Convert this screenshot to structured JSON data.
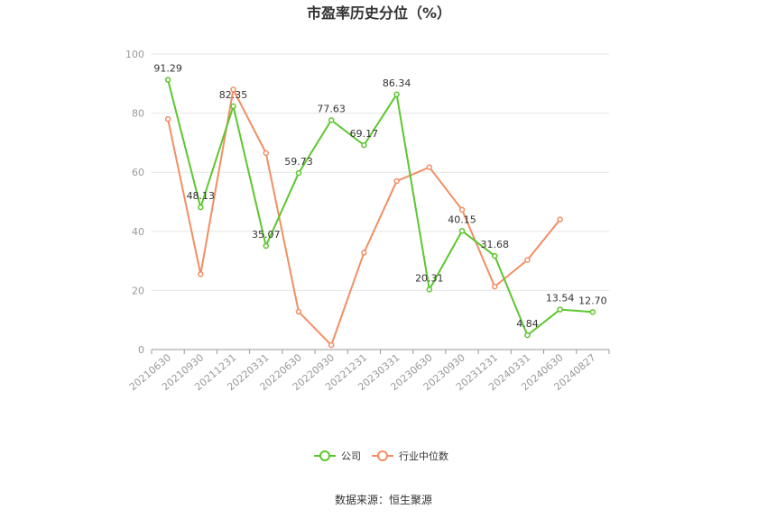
{
  "chart_data": {
    "type": "line",
    "title": "市盈率历史分位（%）",
    "categories": [
      "20210630",
      "20210930",
      "20211231",
      "20220331",
      "20220630",
      "20220930",
      "20221231",
      "20230331",
      "20230630",
      "20230930",
      "20231231",
      "20240331",
      "20240630",
      "20240827"
    ],
    "ylim": [
      0,
      100
    ],
    "yticks": [
      0,
      20,
      40,
      60,
      80,
      100
    ],
    "grid": true,
    "legend_position": "bottom",
    "series": [
      {
        "name": "公司",
        "color": "#5cc72e",
        "values": [
          91.29,
          48.13,
          82.35,
          35.07,
          59.73,
          77.63,
          69.17,
          86.34,
          20.31,
          40.15,
          31.68,
          4.84,
          13.54,
          12.7
        ],
        "labels": [
          "91.29",
          "48.13",
          "82.35",
          "35.07",
          "59.73",
          "77.63",
          "69.17",
          "86.34",
          "20.31",
          "40.15",
          "31.68",
          "4.84",
          "13.54",
          "12.70"
        ]
      },
      {
        "name": "行业中位数",
        "color": "#f28e64",
        "values": [
          78.0,
          25.5,
          88.0,
          66.5,
          12.8,
          1.5,
          32.8,
          57.0,
          61.7,
          47.3,
          21.3,
          30.3,
          44.0,
          null
        ]
      }
    ]
  },
  "source": "数据来源：恒生聚源"
}
